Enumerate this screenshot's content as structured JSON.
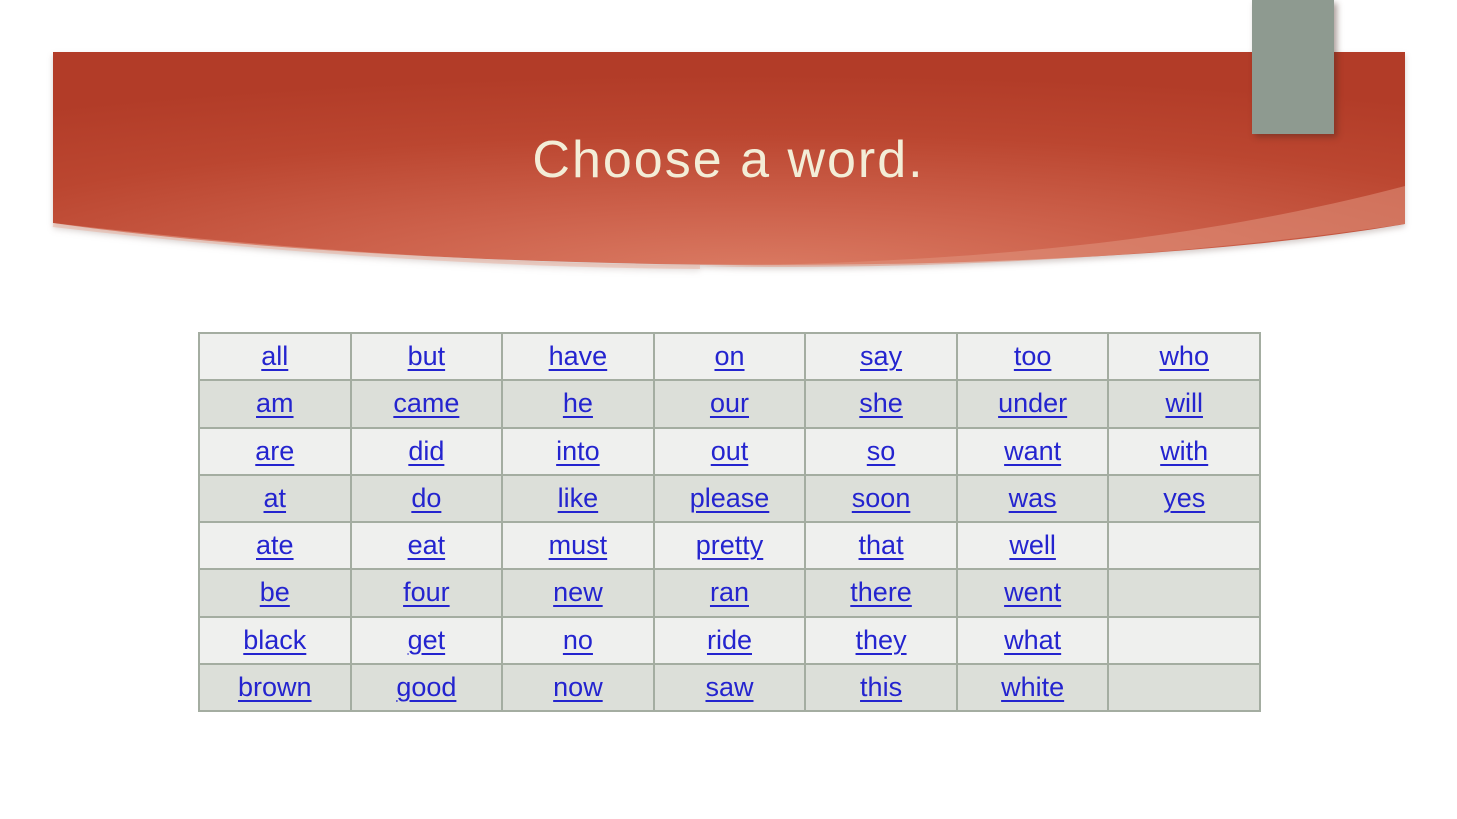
{
  "slide": {
    "title": "Choose a word."
  },
  "theme": {
    "banner_red_dark": "#b23c28",
    "banner_red_mid": "#c85a42",
    "banner_red_light": "#db7c64",
    "banner_swoosh": "#e0937e",
    "title_color": "#f3edd7",
    "tab_color": "#8e9a90",
    "table_border": "#a4ada1",
    "row_light": "#eff0ee",
    "row_dark": "#dcdfd9",
    "link_color": "#2424cf"
  },
  "table": {
    "rows": [
      [
        "all",
        "but",
        "have",
        "on",
        "say",
        "too",
        "who"
      ],
      [
        "am",
        "came",
        "he",
        "our",
        "she",
        "under",
        "will"
      ],
      [
        "are",
        "did",
        "into",
        "out",
        "so",
        "want",
        "with"
      ],
      [
        "at",
        "do",
        "like",
        "please",
        "soon",
        "was",
        "yes"
      ],
      [
        "ate",
        "eat",
        "must",
        "pretty",
        "that",
        "well",
        ""
      ],
      [
        "be",
        "four",
        "new",
        "ran",
        "there",
        "went",
        ""
      ],
      [
        "black",
        "get",
        "no",
        "ride",
        "they",
        "what",
        ""
      ],
      [
        "brown",
        "good",
        "now",
        "saw",
        "this",
        "white",
        ""
      ]
    ]
  }
}
